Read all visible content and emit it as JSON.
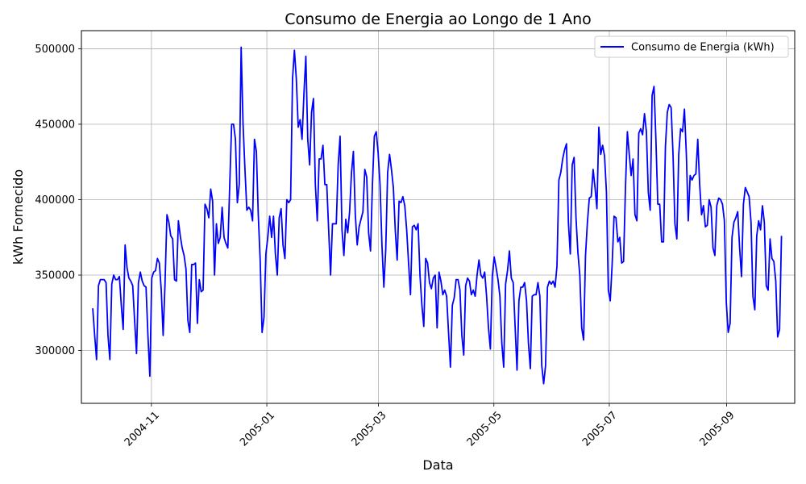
{
  "chart_data": {
    "type": "line",
    "title": "Consumo de Energia ao Longo de 1 Ano",
    "xlabel": "Data",
    "ylabel": "kWh Fornecido",
    "x_ticks": [
      "2004-11",
      "2005-01",
      "2005-03",
      "2005-05",
      "2005-07",
      "2005-09"
    ],
    "y_ticks": [
      300000,
      350000,
      400000,
      450000,
      500000
    ],
    "ylim": [
      265000,
      512000
    ],
    "xlim": [
      "2004-09-25",
      "2005-10-07"
    ],
    "grid": true,
    "legend_position": "top-right",
    "x_start": "2004-10-01",
    "x_end": "2005-09-30",
    "series": [
      {
        "name": "Consumo de Energia (kWh)",
        "color": "#0000ff",
        "values": [
          328000,
          310000,
          294000,
          343000,
          347000,
          347000,
          347000,
          345000,
          310000,
          294000,
          344000,
          350000,
          347000,
          347000,
          349000,
          330000,
          314000,
          370000,
          355000,
          348000,
          346000,
          343000,
          320000,
          298000,
          345000,
          352000,
          346000,
          343000,
          342000,
          310000,
          283000,
          348000,
          352000,
          353000,
          361000,
          358000,
          340000,
          310000,
          345000,
          390000,
          385000,
          376000,
          374000,
          347000,
          346000,
          386000,
          376000,
          368000,
          363000,
          354000,
          320000,
          312000,
          357000,
          357000,
          358000,
          318000,
          347000,
          339000,
          340000,
          397000,
          394000,
          388000,
          407000,
          399000,
          350000,
          384000,
          371000,
          375000,
          395000,
          375000,
          371000,
          368000,
          410000,
          450000,
          450000,
          440000,
          398000,
          410000,
          501000,
          450000,
          420000,
          393000,
          395000,
          393000,
          386000,
          440000,
          432000,
          390000,
          360000,
          312000,
          322000,
          364000,
          375000,
          389000,
          375000,
          389000,
          364000,
          350000,
          388000,
          394000,
          370000,
          361000,
          400000,
          398000,
          400000,
          480000,
          499000,
          480000,
          448000,
          453000,
          440000,
          470000,
          495000,
          440000,
          423000,
          458000,
          467000,
          410000,
          386000,
          427000,
          427000,
          436000,
          410000,
          410000,
          380000,
          350000,
          384000,
          384000,
          384000,
          423000,
          442000,
          380000,
          363000,
          387000,
          378000,
          392000,
          418000,
          432000,
          390000,
          370000,
          382000,
          387000,
          392000,
          420000,
          415000,
          378000,
          366000,
          410000,
          442000,
          445000,
          431000,
          410000,
          370000,
          342000,
          367000,
          418000,
          430000,
          420000,
          408000,
          380000,
          360000,
          399000,
          398000,
          402000,
          396000,
          380000,
          358000,
          337000,
          382000,
          383000,
          380000,
          384000,
          350000,
          330000,
          316000,
          361000,
          358000,
          345000,
          341000,
          348000,
          350000,
          315000,
          352000,
          346000,
          337000,
          340000,
          336000,
          312000,
          289000,
          330000,
          335000,
          347000,
          347000,
          340000,
          310000,
          297000,
          343000,
          348000,
          346000,
          337000,
          340000,
          336000,
          350000,
          360000,
          350000,
          348000,
          352000,
          336000,
          315000,
          301000,
          349000,
          362000,
          355000,
          347000,
          336000,
          305000,
          289000,
          344000,
          353000,
          366000,
          348000,
          345000,
          316000,
          287000,
          333000,
          342000,
          342000,
          345000,
          333000,
          305000,
          288000,
          336000,
          337000,
          337000,
          345000,
          336000,
          290000,
          278000,
          290000,
          342000,
          346000,
          344000,
          346000,
          342000,
          356000,
          413000,
          418000,
          427000,
          433000,
          437000,
          385000,
          364000,
          423000,
          428000,
          388000,
          365000,
          350000,
          315000,
          307000,
          363000,
          385000,
          401000,
          402000,
          420000,
          408000,
          394000,
          448000,
          430000,
          436000,
          429000,
          405000,
          340000,
          333000,
          357000,
          389000,
          388000,
          372000,
          375000,
          358000,
          359000,
          408000,
          445000,
          430000,
          416000,
          427000,
          390000,
          386000,
          444000,
          447000,
          443000,
          457000,
          445000,
          405000,
          393000,
          469000,
          475000,
          440000,
          397000,
          397000,
          372000,
          372000,
          435000,
          458000,
          463000,
          461000,
          430000,
          384000,
          374000,
          430000,
          447000,
          445000,
          460000,
          430000,
          386000,
          416000,
          413000,
          416000,
          417000,
          440000,
          410000,
          390000,
          396000,
          382000,
          383000,
          400000,
          395000,
          368000,
          363000,
          396000,
          401000,
          400000,
          397000,
          386000,
          332000,
          312000,
          318000,
          375000,
          385000,
          388000,
          392000,
          368000,
          349000,
          397000,
          408000,
          405000,
          402000,
          385000,
          336000,
          327000,
          376000,
          386000,
          380000,
          396000,
          385000,
          343000,
          340000,
          374000,
          361000,
          359000,
          346000,
          309000,
          314000,
          376000
        ]
      }
    ]
  }
}
